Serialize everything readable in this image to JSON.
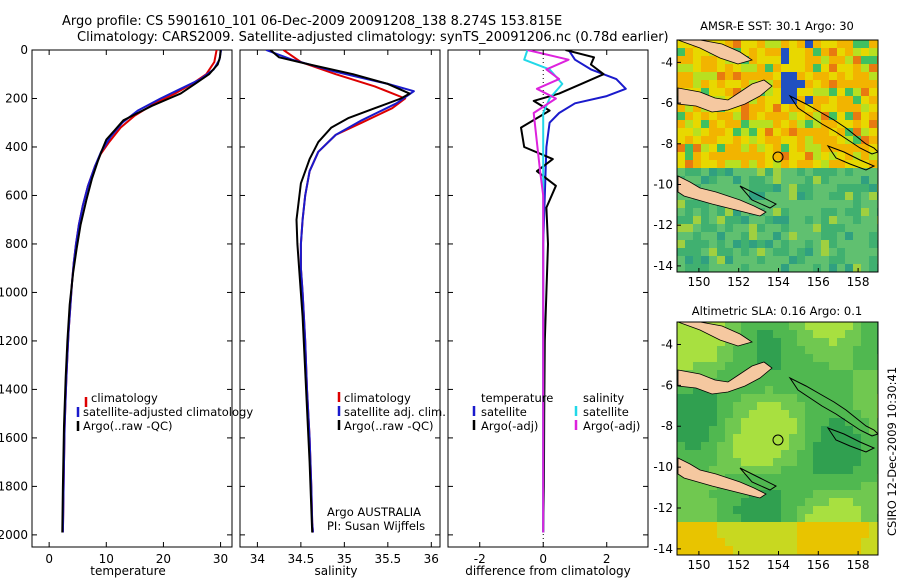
{
  "title_line1": "Argo profile: CS 5901610_101 06-Dec-2009 20091208_138 8.274S 153.815E",
  "title_line2": "Climatology: CARS2009. Satellite-adjusted climatology: synTS_20091206.nc (0.78d earlier)",
  "side_label": "CSIRO 12-Dec-2009 10:30:41",
  "chart_data": [
    {
      "type": "line",
      "name": "temperature-profile",
      "xlabel": "temperature",
      "ylabel": "",
      "xlim": [
        -3,
        32
      ],
      "ylim": [
        2050,
        0
      ],
      "xticks": [
        0,
        10,
        20,
        30
      ],
      "yticks": [
        0,
        200,
        400,
        600,
        800,
        1000,
        1200,
        1400,
        1600,
        1800,
        2000
      ],
      "legend": [
        "climatology",
        "satellite-adjusted climatology",
        "Argo(..raw -QC)"
      ],
      "series": [
        {
          "name": "climatology",
          "color": "#dd0000",
          "x": [
            29.3,
            28.9,
            27.5,
            25.0,
            22.0,
            18.5,
            15.0,
            12.5,
            10.5,
            9.0,
            8.0,
            6.8,
            5.9,
            5.2,
            4.7,
            4.3,
            4.0,
            3.7,
            3.4,
            3.2,
            3.0,
            2.85,
            2.7,
            2.6,
            2.5,
            2.4
          ],
          "y": [
            0,
            50,
            100,
            140,
            180,
            220,
            270,
            320,
            380,
            430,
            480,
            560,
            640,
            720,
            800,
            880,
            960,
            1060,
            1160,
            1260,
            1360,
            1460,
            1560,
            1700,
            1850,
            1990
          ]
        },
        {
          "name": "satellite adjusted",
          "color": "#1a1acc",
          "x": [
            30.1,
            29.8,
            28.8,
            26.5,
            23.0,
            19.5,
            15.5,
            12.8,
            10.7,
            9.1,
            8.0,
            6.8,
            5.9,
            5.2,
            4.7,
            4.3,
            4.0,
            3.7,
            3.4,
            3.2,
            3.0,
            2.85,
            2.7,
            2.6,
            2.5,
            2.4
          ],
          "y": [
            0,
            40,
            80,
            120,
            160,
            200,
            250,
            300,
            360,
            420,
            480,
            560,
            640,
            720,
            800,
            880,
            960,
            1060,
            1160,
            1260,
            1360,
            1460,
            1560,
            1700,
            1850,
            1990
          ]
        },
        {
          "name": "Argo",
          "color": "#000000",
          "x": [
            30.0,
            29.9,
            29.5,
            28.0,
            25.5,
            23.0,
            21.0,
            18.0,
            15.5,
            13.0,
            11.5,
            10.0,
            9.3,
            8.5,
            7.5,
            6.5,
            5.5,
            4.8,
            4.2,
            3.6,
            3.2,
            2.9,
            2.6,
            2.4,
            2.3
          ],
          "y": [
            0,
            30,
            60,
            100,
            140,
            180,
            200,
            230,
            260,
            290,
            330,
            370,
            410,
            460,
            530,
            620,
            720,
            820,
            920,
            1050,
            1200,
            1350,
            1550,
            1800,
            1990
          ]
        }
      ]
    },
    {
      "type": "line",
      "name": "salinity-profile",
      "xlabel": "salinity",
      "ylabel": "",
      "xlim": [
        33.8,
        36.1
      ],
      "ylim": [
        2050,
        0
      ],
      "xticks": [
        34,
        34.5,
        35,
        35.5,
        36
      ],
      "legend": [
        "climatology",
        "satellite adj. clim.",
        "Argo(..raw -QC)"
      ],
      "annotation": [
        "Argo AUSTRALIA",
        "PI: Susan Wijffels"
      ],
      "series": [
        {
          "name": "climatology",
          "color": "#dd0000",
          "x": [
            34.3,
            34.5,
            34.9,
            35.35,
            35.7,
            35.55,
            35.2,
            34.9,
            34.7,
            34.6,
            34.55,
            34.52,
            34.5,
            34.5,
            34.52,
            34.55,
            34.57,
            34.6,
            34.62,
            34.63,
            34.64
          ],
          "y": [
            0,
            50,
            100,
            150,
            200,
            240,
            300,
            350,
            420,
            500,
            600,
            700,
            800,
            900,
            1000,
            1200,
            1400,
            1600,
            1800,
            1950,
            1990
          ]
        },
        {
          "name": "satellite adjusted",
          "color": "#1a1acc",
          "x": [
            34.1,
            34.4,
            34.9,
            35.5,
            35.8,
            35.6,
            35.2,
            34.9,
            34.7,
            34.6,
            34.55,
            34.52,
            34.5,
            34.5,
            34.52,
            34.55,
            34.57,
            34.6,
            34.62,
            34.63,
            34.64
          ],
          "y": [
            0,
            40,
            90,
            140,
            170,
            220,
            290,
            350,
            420,
            500,
            600,
            700,
            800,
            900,
            1000,
            1200,
            1400,
            1600,
            1800,
            1950,
            1990
          ]
        },
        {
          "name": "Argo",
          "color": "#000000",
          "x": [
            34.15,
            34.25,
            34.6,
            35.1,
            35.5,
            35.75,
            35.65,
            35.35,
            35.05,
            34.85,
            34.7,
            34.6,
            34.5,
            34.45,
            34.46,
            34.48,
            34.52,
            34.56,
            34.6,
            34.63
          ],
          "y": [
            0,
            30,
            60,
            100,
            140,
            180,
            200,
            240,
            280,
            320,
            380,
            450,
            550,
            700,
            800,
            900,
            1100,
            1400,
            1700,
            1990
          ]
        }
      ]
    },
    {
      "type": "line",
      "name": "difference-profile",
      "xlabel": "difference from climatology",
      "ylabel": "",
      "xlim": [
        -3,
        3.3
      ],
      "ylim": [
        2050,
        0
      ],
      "xticks": [
        -2,
        0,
        2
      ],
      "legend_left_title": "temperature",
      "legend_right_title": "salinity",
      "legend": [
        "satellite",
        "Argo(-adj)",
        "satellite",
        "Argo(-adj)"
      ],
      "series": [
        {
          "name": "temperature satellite",
          "color": "#1a1acc",
          "x": [
            0.8,
            1.0,
            1.5,
            2.3,
            2.6,
            2.0,
            1.0,
            0.5,
            0.2,
            0.1,
            0.05,
            0,
            0,
            0,
            0,
            0
          ],
          "y": [
            0,
            40,
            80,
            120,
            160,
            190,
            220,
            260,
            300,
            400,
            600,
            800,
            1000,
            1400,
            1800,
            1990
          ]
        },
        {
          "name": "temperature Argo",
          "color": "#000000",
          "x": [
            0.7,
            1.6,
            1.5,
            1.9,
            1.2,
            0.5,
            -0.3,
            0.2,
            -0.7,
            -0.6,
            0.3,
            -0.2,
            0.4,
            0.1,
            0.15,
            0.1,
            0.05,
            0.03,
            0.02,
            0.0
          ],
          "y": [
            0,
            30,
            60,
            100,
            140,
            180,
            210,
            250,
            320,
            400,
            450,
            500,
            560,
            650,
            800,
            1000,
            1200,
            1500,
            1800,
            1990
          ]
        },
        {
          "name": "salinity satellite",
          "color": "#22d8e8",
          "x": [
            -0.5,
            -0.6,
            0.2,
            0.6,
            0.2,
            0,
            0,
            0,
            0,
            0,
            0
          ],
          "y": [
            0,
            40,
            80,
            140,
            200,
            260,
            400,
            800,
            1200,
            1600,
            1990
          ]
        },
        {
          "name": "salinity Argo",
          "color": "#dd22dd",
          "x": [
            -0.5,
            0.8,
            0.1,
            0.5,
            -0.2,
            0.4,
            -0.3,
            -0.2,
            -0.1,
            0,
            0,
            0,
            0
          ],
          "y": [
            0,
            40,
            80,
            120,
            160,
            200,
            260,
            380,
            500,
            600,
            800,
            1200,
            1990
          ]
        }
      ]
    }
  ],
  "maps": [
    {
      "title": "AMSR-E SST: 30.1 Argo: 30",
      "xticks": [
        "150",
        "152",
        "154",
        "156",
        "158"
      ],
      "yticks": [
        "-4",
        "-6",
        "-8",
        "-10",
        "-12",
        "-14"
      ]
    },
    {
      "title": "Altimetric SLA: 0.16 Argo: 0.1",
      "xticks": [
        "150",
        "152",
        "154",
        "156",
        "158"
      ],
      "yticks": [
        "-4",
        "-6",
        "-8",
        "-10",
        "-12",
        "-14"
      ]
    }
  ]
}
